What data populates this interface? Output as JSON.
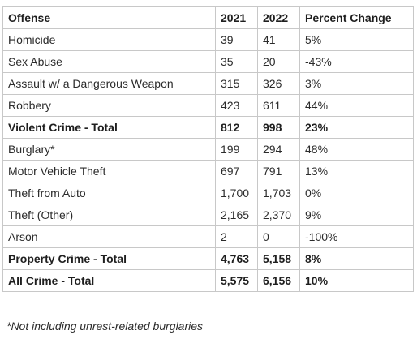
{
  "table": {
    "headers": [
      "Offense",
      "2021",
      "2022",
      "Percent Change"
    ],
    "rows": [
      {
        "cells": [
          "Homicide",
          "39",
          "41",
          "5%"
        ],
        "bold": false
      },
      {
        "cells": [
          "Sex Abuse",
          "35",
          "20",
          "-43%"
        ],
        "bold": false
      },
      {
        "cells": [
          "Assault w/ a Dangerous Weapon",
          "315",
          "326",
          "3%"
        ],
        "bold": false
      },
      {
        "cells": [
          "Robbery",
          "423",
          "611",
          "44%"
        ],
        "bold": false
      },
      {
        "cells": [
          "Violent Crime - Total",
          "812",
          "998",
          "23%"
        ],
        "bold": true
      },
      {
        "cells": [
          "Burglary*",
          "199",
          "294",
          "48%"
        ],
        "bold": false
      },
      {
        "cells": [
          "Motor Vehicle Theft",
          "697",
          "791",
          "13%"
        ],
        "bold": false
      },
      {
        "cells": [
          "Theft from Auto",
          "1,700",
          "1,703",
          "0%"
        ],
        "bold": false
      },
      {
        "cells": [
          "Theft (Other)",
          "2,165",
          "2,370",
          "9%"
        ],
        "bold": false
      },
      {
        "cells": [
          "Arson",
          "2",
          "0",
          "-100%"
        ],
        "bold": false
      },
      {
        "cells": [
          "Property Crime - Total",
          "4,763",
          "5,158",
          "8%"
        ],
        "bold": true
      },
      {
        "cells": [
          "All Crime - Total",
          "5,575",
          "6,156",
          "10%"
        ],
        "bold": true
      }
    ]
  },
  "footnote": "*Not including unrest-related burglaries"
}
